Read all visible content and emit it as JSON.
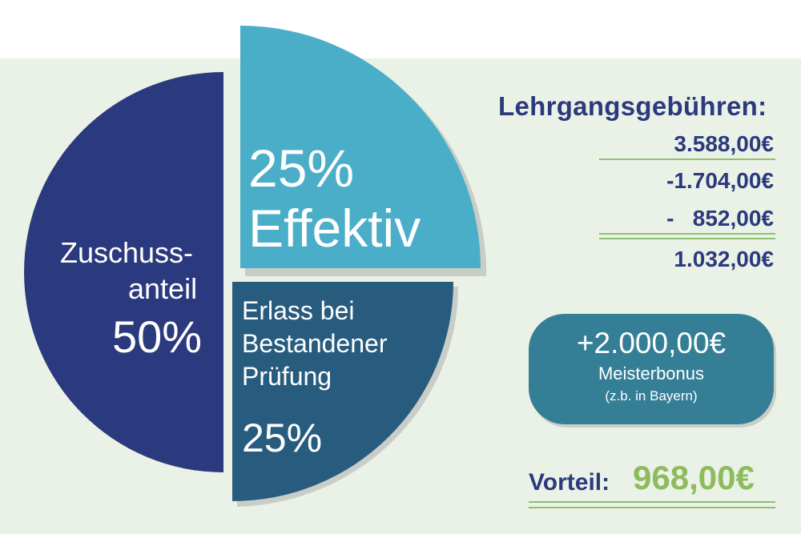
{
  "chart_data": {
    "type": "pie",
    "slices": [
      {
        "label": "Zuschuss-anteil",
        "value": 50,
        "value_label": "50%",
        "color": "#2b3a7e"
      },
      {
        "label": "Effektiv",
        "value": 25,
        "value_label": "25%",
        "color": "#4baec8"
      },
      {
        "label": "Erlass bei Bestandener Prüfung",
        "value": 25,
        "value_label": "25%",
        "color": "#285c7e"
      }
    ]
  },
  "labels": {
    "zuschuss_line1": "Zuschuss-",
    "zuschuss_line2": "anteil",
    "zuschuss_pct": "50%",
    "effektiv_pct": "25%",
    "effektiv_word": "Effektiv",
    "erlass_line1": "Erlass bei",
    "erlass_line2": "Bestandener",
    "erlass_line3": "Prüfung",
    "erlass_pct": "25%"
  },
  "fees": {
    "title": "Lehrgangsgebühren:",
    "amounts": [
      "3.588,00€",
      "-1.704,00€",
      "-   852,00€",
      "1.032,00€"
    ]
  },
  "bonus": {
    "amount": "+2.000,00€",
    "label": "Meisterbonus",
    "note": "(z.b. in Bayern)"
  },
  "advantage": {
    "label": "Vorteil:",
    "value": "968,00€"
  }
}
